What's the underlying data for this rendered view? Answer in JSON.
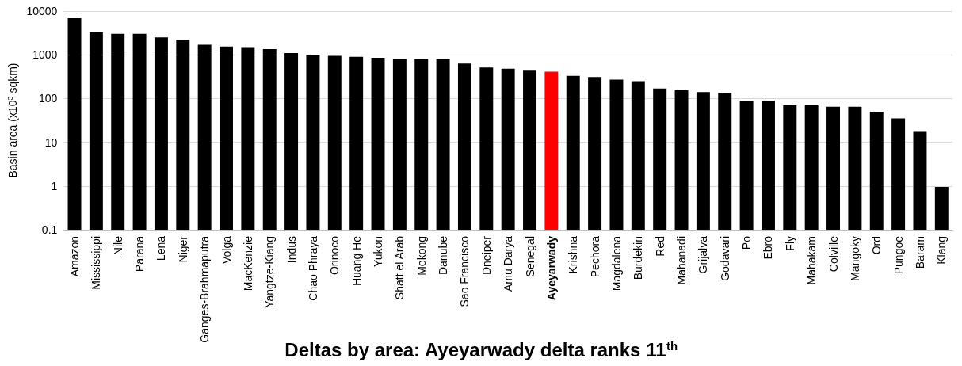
{
  "chart_data": {
    "type": "bar",
    "title": "Deltas by area: Ayeyarwady delta ranks 11$^{th}$",
    "ylabel": "Basin area (x10$^{3}$ sqkm)",
    "categories": [
      "Amazon",
      "Mississippi",
      "Nile",
      "Parana",
      "Lena",
      "Niger",
      "Ganges-Brahmaputra",
      "Volga",
      "MacKenzie",
      "Yangtze-Kiang",
      "Indus",
      "Chao Phraya",
      "Orinoco",
      "Huang He",
      "Yukon",
      "Shatt el Arab",
      "Mekong",
      "Danube",
      "Sao Francisco",
      "Dneiper",
      "Amu Darya",
      "Senegal",
      "Ayeyarwady",
      "Krishna",
      "Pechora",
      "Magdalena",
      "Burdekin",
      "Red",
      "Mahanadi",
      "Grijalva",
      "Godavari",
      "Po",
      "Ebro",
      "Fly",
      "Mahakam",
      "Colville",
      "Mangoky",
      "Ord",
      "Pungoe",
      "Baram",
      "Klang"
    ],
    "values": [
      6900,
      3300,
      3000,
      3000,
      2500,
      2200,
      1700,
      1550,
      1500,
      1350,
      1100,
      1000,
      950,
      900,
      850,
      800,
      800,
      800,
      630,
      510,
      480,
      450,
      410,
      330,
      310,
      270,
      250,
      170,
      155,
      140,
      135,
      90,
      90,
      70,
      70,
      65,
      65,
      50,
      35,
      18,
      0.95
    ],
    "colors": [
      "#000000",
      "#000000",
      "#000000",
      "#000000",
      "#000000",
      "#000000",
      "#000000",
      "#000000",
      "#000000",
      "#000000",
      "#000000",
      "#000000",
      "#000000",
      "#000000",
      "#000000",
      "#000000",
      "#000000",
      "#000000",
      "#000000",
      "#000000",
      "#000000",
      "#000000",
      "#ff0000",
      "#000000",
      "#000000",
      "#000000",
      "#000000",
      "#000000",
      "#000000",
      "#000000",
      "#000000",
      "#000000",
      "#000000",
      "#000000",
      "#000000",
      "#000000",
      "#000000",
      "#000000",
      "#000000",
      "#000000",
      "#000000"
    ],
    "log": true,
    "ylim": [
      0.1,
      10000
    ],
    "yticks": [
      0.1,
      1,
      10,
      100,
      1000,
      10000
    ],
    "grid": "y"
  }
}
